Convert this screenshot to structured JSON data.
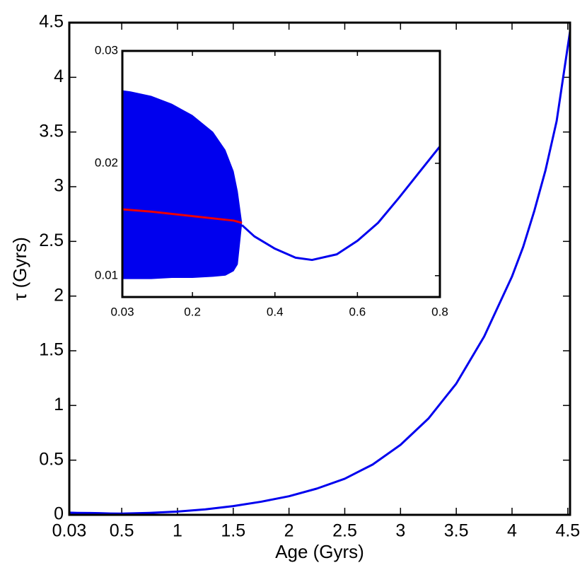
{
  "chart_data": [
    {
      "type": "line",
      "x_label": "Age (Gyrs)",
      "y_label": "τ (Gyrs)",
      "xlim": [
        0.03,
        4.52
      ],
      "ylim": [
        0,
        4.5
      ],
      "xticks": [
        0.03,
        0.5,
        1,
        1.5,
        2,
        2.5,
        3,
        3.5,
        4,
        4.5
      ],
      "yticks": [
        0,
        0.5,
        1,
        1.5,
        2,
        2.5,
        3,
        3.5,
        4,
        4.5
      ],
      "series": [
        {
          "color": "#0000ee",
          "x": [
            0.03,
            0.1,
            0.2,
            0.3,
            0.4,
            0.5,
            0.75,
            1,
            1.25,
            1.5,
            1.75,
            2,
            2.25,
            2.5,
            2.75,
            3,
            3.25,
            3.5,
            3.75,
            4,
            4.1,
            4.2,
            4.3,
            4.4,
            4.52
          ],
          "values": [
            0.02,
            0.018,
            0.017,
            0.015,
            0.012,
            0.011,
            0.018,
            0.03,
            0.05,
            0.08,
            0.12,
            0.17,
            0.24,
            0.33,
            0.46,
            0.64,
            0.88,
            1.2,
            1.63,
            2.18,
            2.45,
            2.78,
            3.15,
            3.6,
            4.42
          ]
        }
      ]
    },
    {
      "type": "line",
      "xlim": [
        0.03,
        0.8
      ],
      "ylim": [
        0.0081,
        0.03
      ],
      "xticks": [
        0.03,
        0.2,
        0.4,
        0.6,
        0.8
      ],
      "yticks": [
        0.01,
        0.02,
        0.03
      ],
      "band": {
        "color": "#0000ee",
        "x": [
          0.03,
          0.05,
          0.1,
          0.15,
          0.2,
          0.25,
          0.28,
          0.3,
          0.31,
          0.32
        ],
        "upper": [
          0.0265,
          0.0264,
          0.026,
          0.0253,
          0.0243,
          0.0228,
          0.0212,
          0.0193,
          0.0175,
          0.0148
        ],
        "lower": [
          0.0097,
          0.0097,
          0.0097,
          0.0098,
          0.0098,
          0.0099,
          0.01,
          0.0104,
          0.011,
          0.0145
        ]
      },
      "series": [
        {
          "color": "#0000ee",
          "x": [
            0.32,
            0.35,
            0.4,
            0.45,
            0.49,
            0.55,
            0.6,
            0.65,
            0.7,
            0.75,
            0.8
          ],
          "values": [
            0.0145,
            0.0135,
            0.0124,
            0.0116,
            0.0114,
            0.0119,
            0.0131,
            0.0147,
            0.0169,
            0.0192,
            0.0215
          ]
        },
        {
          "color": "#ee0000",
          "x": [
            0.03,
            0.1,
            0.2,
            0.3,
            0.32
          ],
          "values": [
            0.0159,
            0.0157,
            0.0153,
            0.0149,
            0.0147
          ]
        }
      ]
    }
  ]
}
